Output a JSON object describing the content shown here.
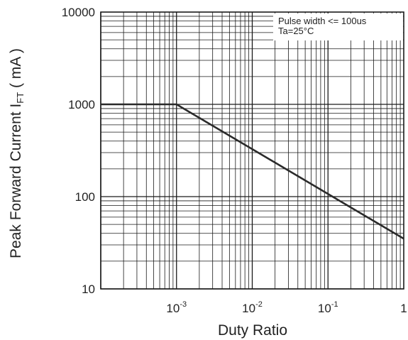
{
  "chart_data": {
    "type": "line",
    "xscale": "log",
    "yscale": "log",
    "xlim": [
      0.0001,
      1
    ],
    "ylim": [
      10,
      10000
    ],
    "xlabel": "Duty Ratio",
    "ylabel_main": "Peak Forward Current I",
    "ylabel_sub": "FT",
    "ylabel_unit": " ( mA )",
    "x_ticks": [
      {
        "value": 0.001,
        "base": "10",
        "exp": "-3"
      },
      {
        "value": 0.01,
        "base": "10",
        "exp": "-2"
      },
      {
        "value": 0.1,
        "base": "10",
        "exp": "-1"
      },
      {
        "value": 1,
        "base": "1",
        "exp": ""
      }
    ],
    "y_ticks": [
      {
        "value": 10,
        "label": "10"
      },
      {
        "value": 100,
        "label": "100"
      },
      {
        "value": 1000,
        "label": "1000"
      },
      {
        "value": 10000,
        "label": "10000"
      }
    ],
    "grid": true,
    "annotation": [
      "Pulse width <= 100us",
      "Ta=25°C"
    ],
    "annotation_position": "top-right",
    "series": [
      {
        "x": [
          0.0001,
          0.001,
          1
        ],
        "y": [
          1000,
          1000,
          35
        ]
      }
    ],
    "line_color": "#2a2a2a",
    "grid_color": "#1a1a1a"
  }
}
